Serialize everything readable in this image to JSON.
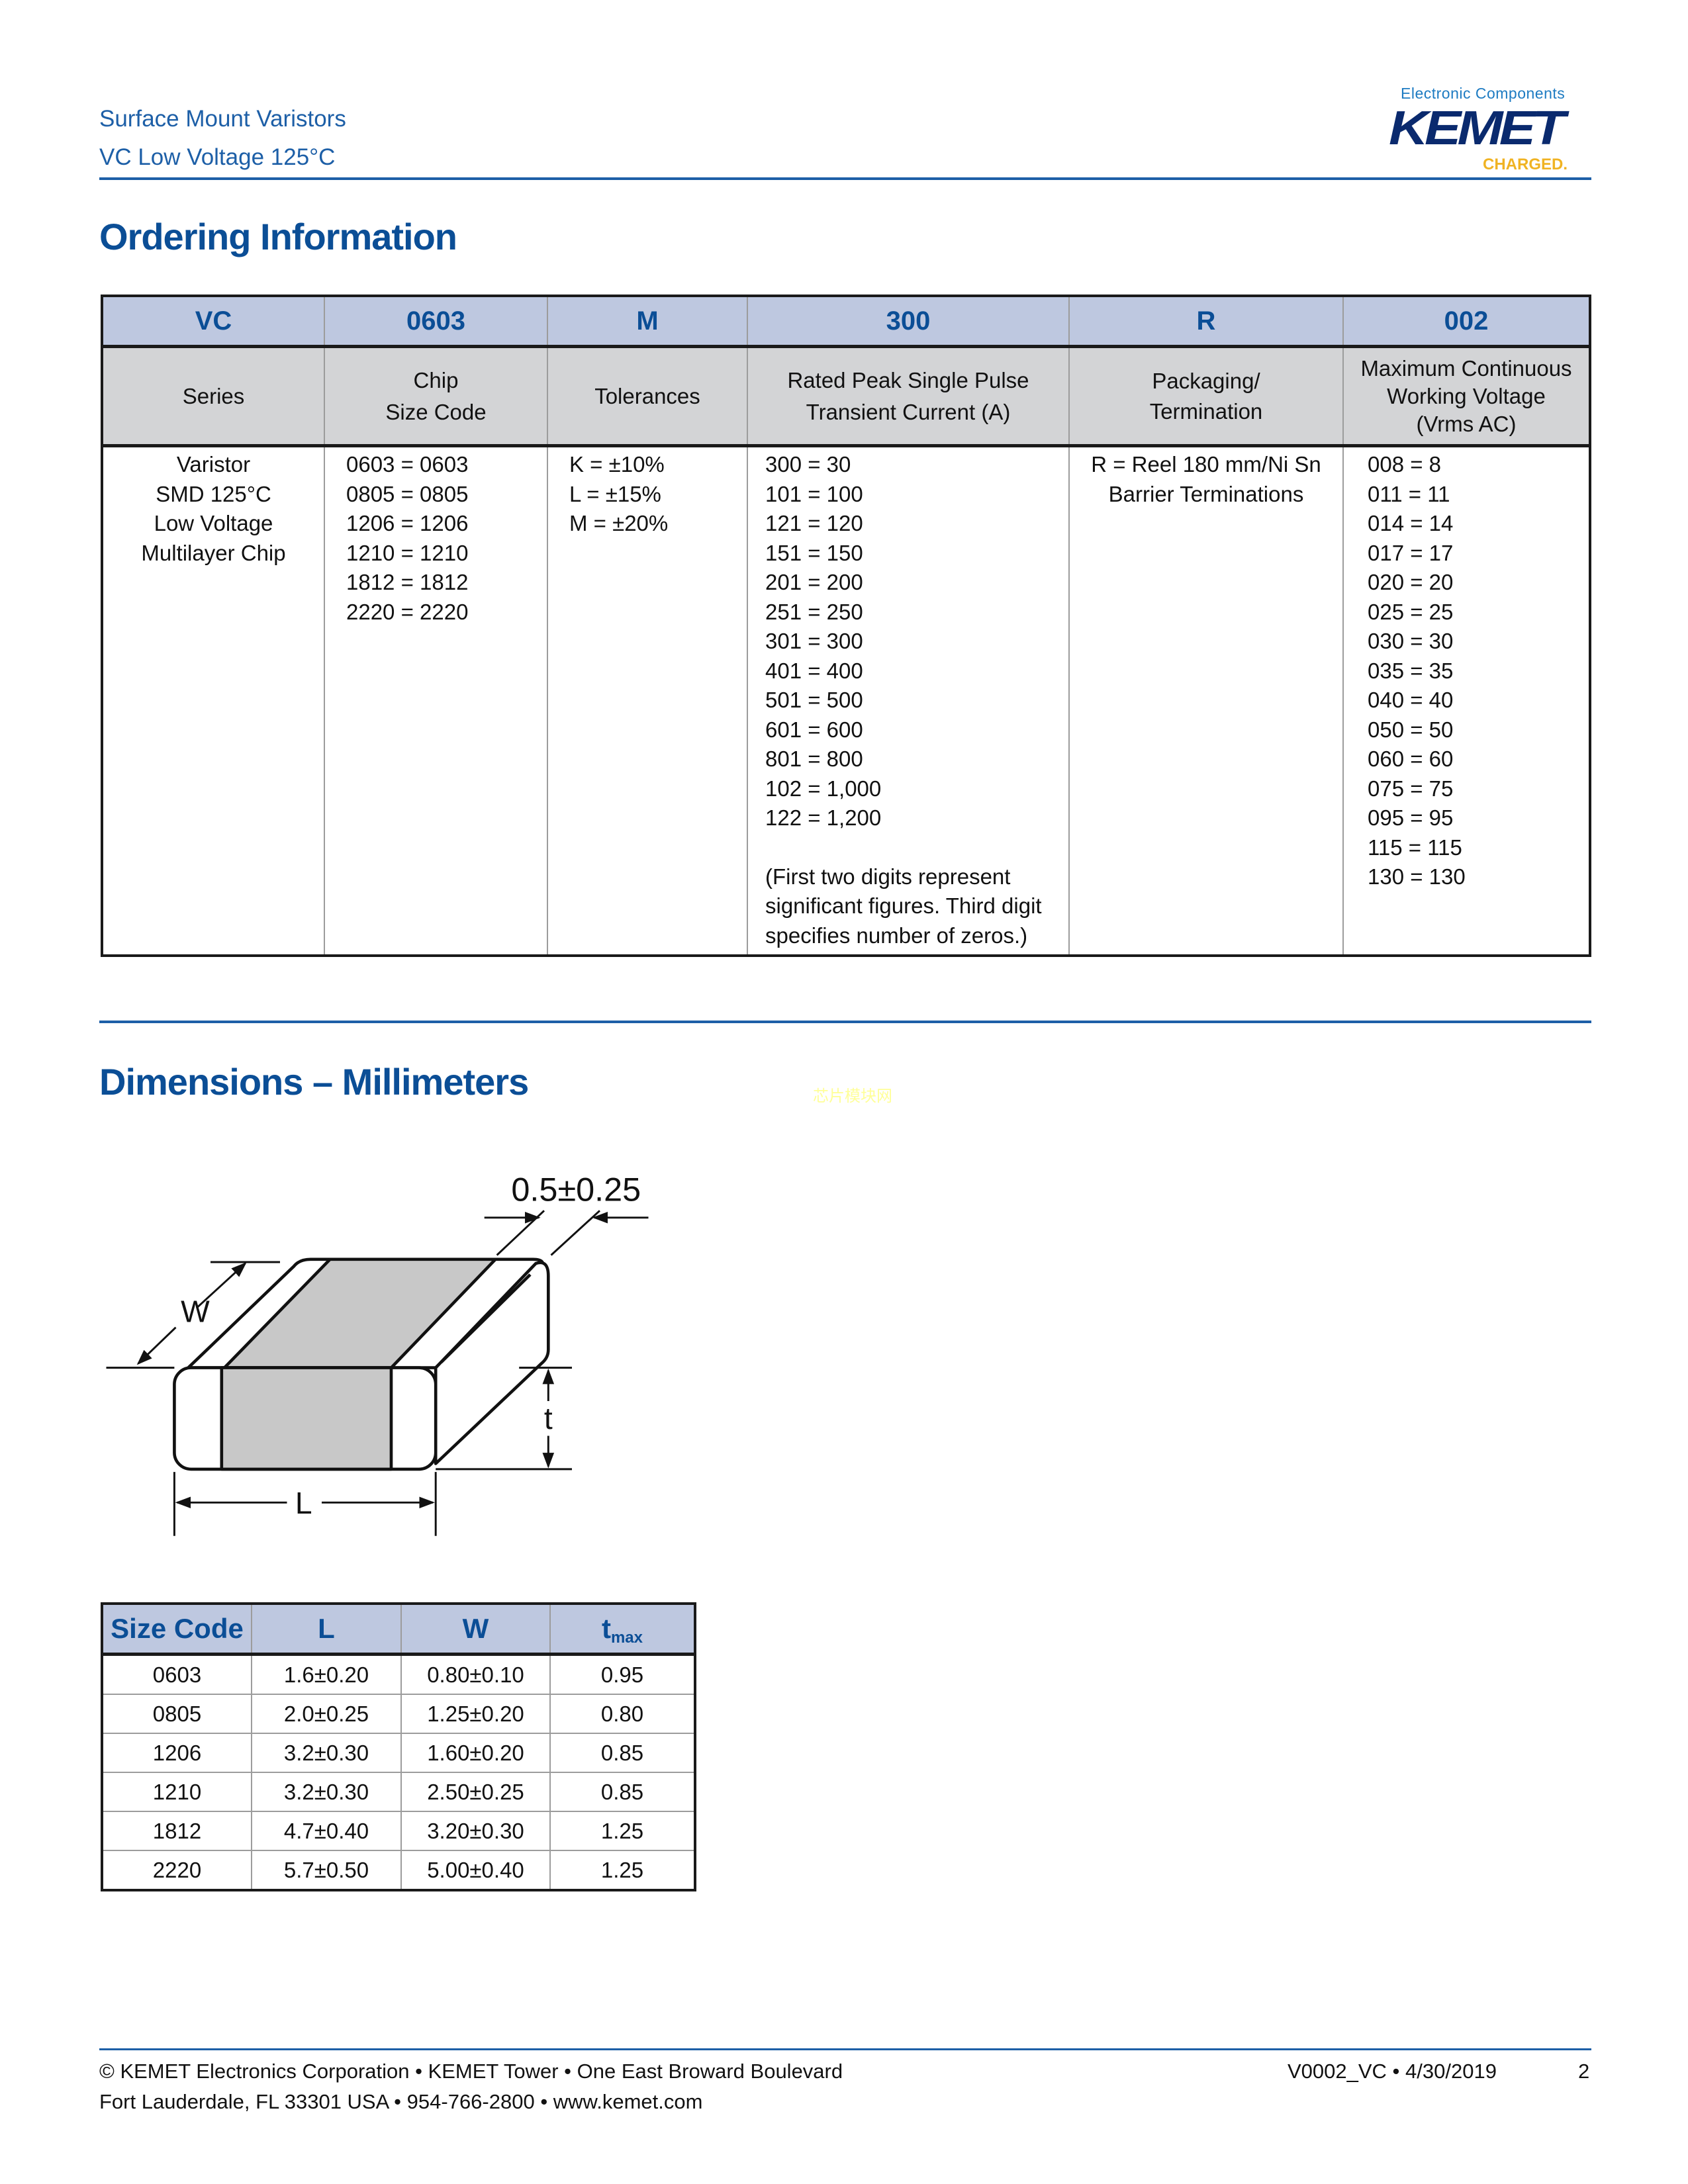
{
  "header": {
    "line1": "Surface Mount Varistors",
    "line2": "VC Low Voltage 125°C",
    "logo": {
      "tagline": "Electronic Components",
      "brand": "KEMET",
      "slogan": "CHARGED.",
      "brand_color": "#0a2a6e",
      "slogan_color": "#f0b323"
    }
  },
  "ordering": {
    "title": "Ordering Information",
    "codes": [
      "VC",
      "0603",
      "M",
      "300",
      "R",
      "002"
    ],
    "labels": [
      [
        "Series"
      ],
      [
        "Chip",
        "Size Code"
      ],
      [
        "Tolerances"
      ],
      [
        "Rated Peak Single Pulse",
        "Transient Current (A)"
      ],
      [
        "Packaging/",
        "Termination"
      ],
      [
        "Maximum Continuous",
        "Working Voltage",
        "(Vrms AC)"
      ]
    ],
    "series": [
      "Varistor",
      "SMD 125°C",
      "Low Voltage",
      "Multilayer Chip"
    ],
    "size_codes": [
      "0603 = 0603",
      "0805 = 0805",
      "1206 = 1206",
      "1210 = 1210",
      "1812 = 1812",
      "2220 = 2220"
    ],
    "tolerances": [
      "K = ±10%",
      "L = ±15%",
      "M = ±20%"
    ],
    "currents": [
      "300 = 30",
      "101 = 100",
      "121 = 120",
      "151 = 150",
      "201 = 200",
      "251 = 250",
      "301 = 300",
      "401 = 400",
      "501 = 500",
      "601 = 600",
      "801 = 800",
      "102 = 1,000",
      "122 = 1,200"
    ],
    "current_note": [
      "(First two digits represent",
      "significant figures. Third digit",
      "specifies number of zeros.)"
    ],
    "packaging": [
      "R = Reel 180 mm/Ni Sn",
      "Barrier Terminations"
    ],
    "voltages": [
      "008 = 8",
      "011 = 11",
      "014 = 14",
      "017 = 17",
      "020 = 20",
      "025 = 25",
      "030 = 30",
      "035 = 35",
      "040 = 40",
      "050 = 50",
      "060 = 60",
      "075 = 75",
      "095 = 95",
      "115 = 115",
      "130 = 130"
    ]
  },
  "dimensions": {
    "title": "Dimensions – Millimeters",
    "watermark": "芯片模块网",
    "diagram": {
      "band_label": "0.5±0.25",
      "w_label": "W",
      "t_label": "t",
      "l_label": "L"
    },
    "table": {
      "headers": [
        "Size Code",
        "L",
        "W",
        "t"
      ],
      "t_subscript": "max",
      "rows": [
        [
          "0603",
          "1.6±0.20",
          "0.80±0.10",
          "0.95"
        ],
        [
          "0805",
          "2.0±0.25",
          "1.25±0.20",
          "0.80"
        ],
        [
          "1206",
          "3.2±0.30",
          "1.60±0.20",
          "0.85"
        ],
        [
          "1210",
          "3.2±0.30",
          "2.50±0.25",
          "0.85"
        ],
        [
          "1812",
          "4.7±0.40",
          "3.20±0.30",
          "1.25"
        ],
        [
          "2220",
          "5.7±0.50",
          "5.00±0.40",
          "1.25"
        ]
      ]
    }
  },
  "footer": {
    "line1": "© KEMET Electronics Corporation • KEMET Tower • One East Broward Boulevard",
    "line2": "Fort Lauderdale, FL 33301 USA • 954-766-2800 • www.kemet.com",
    "doc_id": "V0002_VC • 4/30/2019",
    "page": "2"
  }
}
